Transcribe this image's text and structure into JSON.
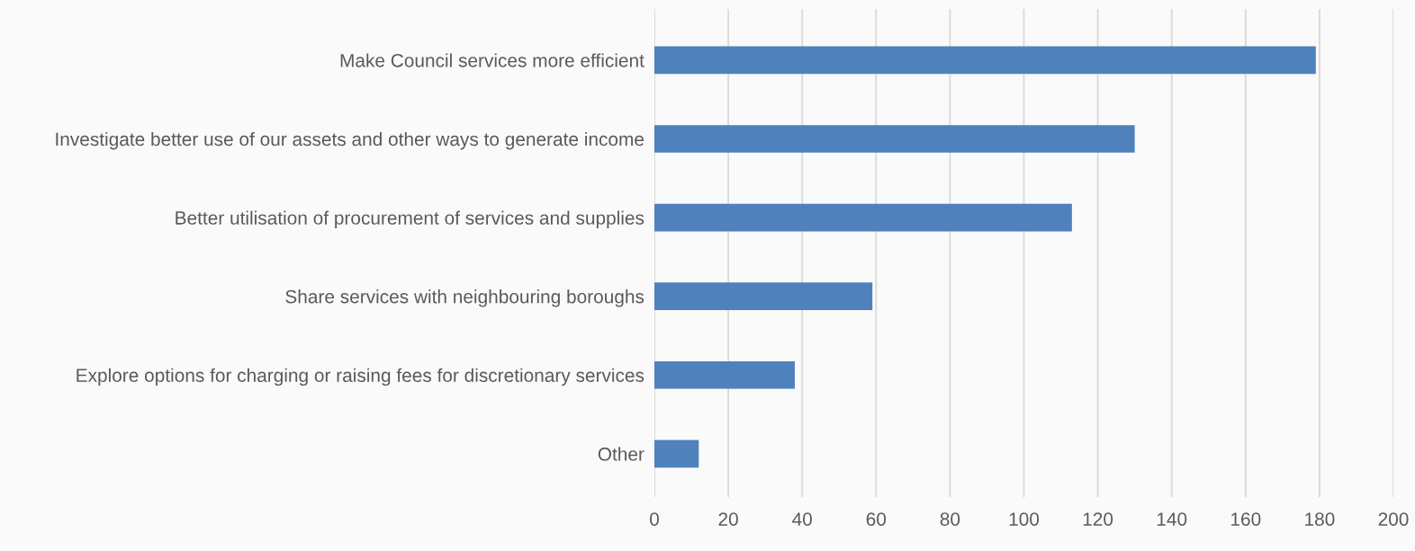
{
  "chart_data": {
    "type": "bar",
    "orientation": "horizontal",
    "categories": [
      "Make Council services more efficient",
      "Investigate better use of our assets and other ways to generate income",
      "Better utilisation of procurement of services and supplies",
      "Share services with neighbouring boroughs",
      "Explore options for charging or raising fees for discretionary services",
      "Other"
    ],
    "values": [
      179,
      130,
      113,
      59,
      38,
      12
    ],
    "color": "#4f81bd",
    "xlim": [
      0,
      200
    ],
    "xticks": [
      0,
      20,
      40,
      60,
      80,
      100,
      120,
      140,
      160,
      180,
      200
    ],
    "grid": "x"
  }
}
